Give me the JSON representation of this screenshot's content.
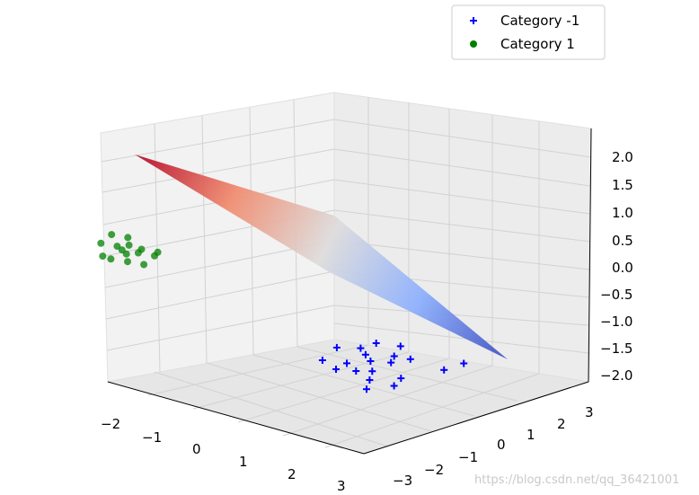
{
  "chart_data": {
    "type": "scatter",
    "projection": "3d",
    "legend": {
      "placement": "top-right",
      "entries": [
        {
          "label": "Category -1",
          "marker": "plus",
          "color": "#0000ff"
        },
        {
          "label": "Category 1",
          "marker": "circle",
          "color": "#008000"
        }
      ]
    },
    "grid": true,
    "axes": {
      "x": {
        "ticks": [
          "−2",
          "−1",
          "0",
          "1",
          "2",
          "3"
        ]
      },
      "y": {
        "ticks": [
          "−3",
          "−2",
          "−1",
          "0",
          "1",
          "2",
          "3"
        ]
      },
      "z": {
        "ticks": [
          "2.0",
          "1.5",
          "1.0",
          "0.5",
          "0.0",
          "−0.5",
          "−1.0",
          "−1.5",
          "−2.0"
        ]
      }
    },
    "surface": {
      "type": "plane",
      "colormap": "coolwarm",
      "z_range": [
        -2.0,
        2.0
      ]
    },
    "series": [
      {
        "name": "Category -1",
        "marker": "plus",
        "color": "#0000ff",
        "points_approx": [
          [
            1.6,
            1.8,
            -1.0
          ],
          [
            1.9,
            1.5,
            -1.05
          ],
          [
            1.2,
            2.0,
            -0.9
          ],
          [
            2.1,
            1.2,
            -1.1
          ],
          [
            1.4,
            1.4,
            -1.0
          ],
          [
            1.8,
            2.2,
            -0.95
          ],
          [
            2.3,
            1.8,
            -1.15
          ],
          [
            1.0,
            1.6,
            -0.85
          ],
          [
            1.5,
            1.0,
            -1.0
          ],
          [
            2.0,
            2.4,
            -1.0
          ],
          [
            1.7,
            1.3,
            -1.05
          ],
          [
            2.4,
            1.5,
            -1.2
          ],
          [
            1.3,
            2.3,
            -0.85
          ],
          [
            2.6,
            2.6,
            -1.1
          ],
          [
            1.1,
            1.1,
            -0.95
          ],
          [
            1.9,
            2.0,
            -1.0
          ],
          [
            2.2,
            1.0,
            -1.2
          ],
          [
            1.6,
            2.6,
            -0.9
          ],
          [
            2.8,
            2.9,
            -1.0
          ],
          [
            1.4,
            1.9,
            -0.95
          ]
        ]
      },
      {
        "name": "Category 1",
        "marker": "circle",
        "color": "#008000",
        "points_approx": [
          [
            -1.0,
            -1.6,
            1.05
          ],
          [
            -1.2,
            -1.3,
            1.1
          ],
          [
            -0.8,
            -1.8,
            1.0
          ],
          [
            -1.4,
            -1.1,
            1.15
          ],
          [
            -0.9,
            -1.4,
            1.05
          ],
          [
            -1.1,
            -1.9,
            1.0
          ],
          [
            -1.3,
            -1.5,
            1.1
          ],
          [
            -0.7,
            -1.2,
            1.0
          ],
          [
            -1.5,
            -1.7,
            1.15
          ],
          [
            -1.0,
            -1.2,
            1.05
          ],
          [
            -0.6,
            -1.6,
            0.95
          ],
          [
            -1.2,
            -2.0,
            1.05
          ],
          [
            -1.6,
            -1.3,
            1.2
          ],
          [
            -0.8,
            -1.0,
            1.0
          ],
          [
            -1.1,
            -1.6,
            1.1
          ]
        ]
      }
    ]
  },
  "watermark": "https://blog.csdn.net/qq_36421001"
}
